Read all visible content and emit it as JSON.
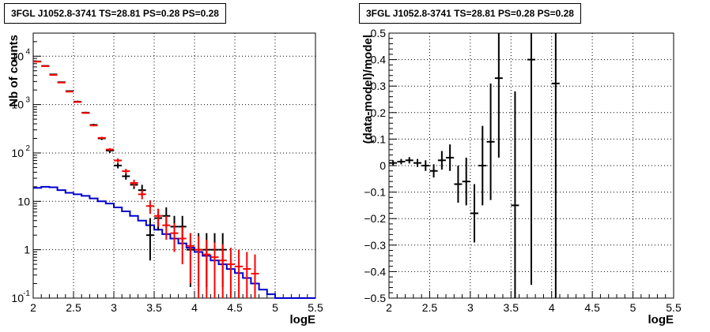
{
  "chart_data": [
    {
      "type": "scatter",
      "title": "3FGL J1052.8-3741 TS=28.81 PS=0.28 PS=0.28",
      "xlabel": "logE",
      "ylabel": "Nb of counts",
      "xlim": [
        2,
        5.5
      ],
      "ylim": [
        0.1,
        30000
      ],
      "yscale": "log",
      "grid": true,
      "x_ticks": [
        "2",
        "2.5",
        "3",
        "3.5",
        "4",
        "4.5",
        "5",
        "5.5"
      ],
      "y_ticks": [
        {
          "v": 0.1,
          "label": "10",
          "exp": "-1"
        },
        {
          "v": 1,
          "label": "1",
          "exp": ""
        },
        {
          "v": 10,
          "label": "10",
          "exp": ""
        },
        {
          "v": 100,
          "label": "10",
          "exp": "2"
        },
        {
          "v": 1000,
          "label": "10",
          "exp": "3"
        },
        {
          "v": 10000,
          "label": "10",
          "exp": "4"
        }
      ],
      "colors": {
        "data": "#000000",
        "model": "#ff0000",
        "background": "#0000cc"
      },
      "series": [
        {
          "kind": "data",
          "x": [
            2.05,
            2.15,
            2.25,
            2.35,
            2.45,
            2.55,
            2.65,
            2.75,
            2.85,
            2.95,
            3.05,
            3.15,
            3.25,
            3.35,
            3.45,
            3.55,
            3.65,
            3.75,
            3.85,
            3.95,
            4.05,
            4.15,
            4.25,
            4.35
          ],
          "y": [
            7800,
            6300,
            4200,
            2900,
            1900,
            1150,
            680,
            380,
            200,
            112,
            55,
            33,
            22,
            17,
            2,
            4.5,
            5,
            3,
            3,
            1,
            1,
            1,
            1,
            1
          ],
          "ylow": [
            7600,
            6100,
            4100,
            2800,
            1850,
            1100,
            650,
            360,
            185,
            100,
            48,
            28,
            18,
            13,
            0.6,
            2.5,
            3,
            1.5,
            1.5,
            0.17,
            0.17,
            0.17,
            0.17,
            0.17
          ],
          "yhigh": [
            8000,
            6500,
            4300,
            3000,
            1950,
            1200,
            710,
            400,
            215,
            124,
            62,
            38,
            26,
            22,
            4.5,
            7,
            7.5,
            5,
            5,
            2.2,
            2.2,
            2.2,
            2.2,
            2.2
          ]
        },
        {
          "kind": "model",
          "x": [
            2.05,
            2.15,
            2.25,
            2.35,
            2.45,
            2.55,
            2.65,
            2.75,
            2.85,
            2.95,
            3.05,
            3.15,
            3.25,
            3.35,
            3.45,
            3.55,
            3.65,
            3.75,
            3.85,
            3.95,
            4.05,
            4.15,
            4.25,
            4.35,
            4.45,
            4.55,
            4.65,
            4.75
          ],
          "y": [
            7700,
            6200,
            4100,
            2850,
            1850,
            1130,
            670,
            370,
            205,
            118,
            70,
            42,
            24,
            14,
            8,
            5,
            3.2,
            2.2,
            1.7,
            1.2,
            1.0,
            0.8,
            0.7,
            0.6,
            0.5,
            0.45,
            0.4,
            0.32
          ],
          "ylow": [
            7600,
            6100,
            4050,
            2800,
            1820,
            1110,
            650,
            355,
            195,
            110,
            63,
            37,
            20,
            11,
            5.5,
            3,
            1.6,
            0.9,
            0.5,
            0.2,
            0.1,
            0.1,
            0.1,
            0.1,
            0.1,
            0.1,
            0.1,
            0.1
          ],
          "yhigh": [
            7800,
            6300,
            4150,
            2900,
            1880,
            1150,
            690,
            385,
            215,
            126,
            77,
            47,
            28,
            17,
            10.5,
            7,
            5,
            3.5,
            3,
            2.2,
            1.9,
            1.6,
            1.4,
            1.3,
            1.1,
            1.0,
            0.9,
            0.8
          ]
        },
        {
          "kind": "background",
          "x": [
            2.0,
            2.1,
            2.2,
            2.3,
            2.4,
            2.5,
            2.6,
            2.7,
            2.8,
            2.9,
            3.0,
            3.1,
            3.2,
            3.3,
            3.4,
            3.5,
            3.6,
            3.7,
            3.8,
            3.9,
            4.0,
            4.1,
            4.2,
            4.3,
            4.4,
            4.5,
            4.6,
            4.7,
            4.8,
            4.9,
            5.0,
            5.1,
            5.2,
            5.3,
            5.4
          ],
          "y": [
            19,
            20,
            19.5,
            17,
            15,
            14,
            13,
            11.5,
            10,
            9,
            7.5,
            6.2,
            5,
            4,
            3.2,
            2.6,
            2.1,
            1.7,
            1.35,
            1.1,
            0.9,
            0.75,
            0.6,
            0.5,
            0.4,
            0.33,
            0.26,
            0.2,
            0.15,
            0.12,
            0.1,
            0.1,
            0.1,
            0.1,
            0.1
          ]
        }
      ]
    },
    {
      "type": "scatter",
      "title": "3FGL J1052.8-3741 TS=28.81 PS=0.28 PS=0.28",
      "xlabel": "logE",
      "ylabel": "(data-model)/model",
      "xlim": [
        2,
        5.5
      ],
      "ylim": [
        -0.5,
        0.5
      ],
      "grid": true,
      "x_ticks": [
        "2",
        "2.5",
        "3",
        "3.5",
        "4",
        "4.5",
        "5",
        "5.5"
      ],
      "y_ticks": [
        "-0.5",
        "-0.4",
        "-0.3",
        "-0.2",
        "-0.1",
        "0",
        "0.1",
        "0.2",
        "0.3",
        "0.4",
        "0.5"
      ],
      "series": [
        {
          "x": [
            2.05,
            2.15,
            2.25,
            2.35,
            2.45,
            2.55,
            2.65,
            2.75,
            2.85,
            2.95,
            3.05,
            3.15,
            3.25,
            3.35,
            3.55,
            3.75,
            4.05
          ],
          "y": [
            0.01,
            0.015,
            0.02,
            0.01,
            0.0,
            -0.02,
            0.02,
            0.03,
            -0.07,
            -0.06,
            -0.18,
            0.0,
            0.09,
            0.33,
            -0.15,
            0.4,
            0.31
          ],
          "err": [
            0.01,
            0.01,
            0.012,
            0.015,
            0.02,
            0.025,
            0.035,
            0.05,
            0.07,
            0.09,
            0.11,
            0.15,
            0.22,
            0.3,
            0.43,
            0.85,
            1.2
          ]
        }
      ]
    }
  ]
}
